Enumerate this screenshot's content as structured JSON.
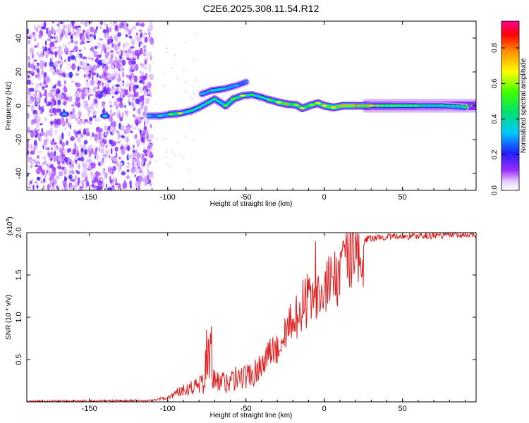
{
  "title": "C2E6.2025.308.11.54.R12",
  "chart_data": [
    {
      "type": "heatmap",
      "name": "spectrogram",
      "xlabel": "Height of straight line (km)",
      "ylabel": "Frequency (Hz)",
      "xlim": [
        -190,
        97
      ],
      "ylim": [
        -50,
        50
      ],
      "xticks": [
        -150,
        -100,
        -50,
        0,
        50
      ],
      "yticks": [
        -40,
        -20,
        0,
        20,
        40
      ],
      "colorbar": {
        "label": "Normalized spectral amplitude",
        "ticks": [
          0.0,
          0.2,
          0.4,
          0.6,
          0.8
        ],
        "range": [
          0,
          0.95
        ]
      },
      "noise_region": {
        "x_range": [
          -190,
          -110
        ],
        "y_range": [
          -50,
          50
        ]
      },
      "ridge": [
        {
          "x": -112,
          "f": -6,
          "a": 0.35
        },
        {
          "x": -105,
          "f": -6,
          "a": 0.4
        },
        {
          "x": -98,
          "f": -5,
          "a": 0.55
        },
        {
          "x": -92,
          "f": -4.5,
          "a": 0.7
        },
        {
          "x": -85,
          "f": -3,
          "a": 0.45
        },
        {
          "x": -80,
          "f": -1,
          "a": 0.45
        },
        {
          "x": -74,
          "f": 2,
          "a": 0.45
        },
        {
          "x": -70,
          "f": 4,
          "a": 0.45
        },
        {
          "x": -63,
          "f": 0,
          "a": 0.55
        },
        {
          "x": -58,
          "f": 4,
          "a": 0.55
        },
        {
          "x": -52,
          "f": 6,
          "a": 0.65
        },
        {
          "x": -46,
          "f": 6.5,
          "a": 0.5
        },
        {
          "x": -40,
          "f": 5,
          "a": 0.45
        },
        {
          "x": -35,
          "f": 3.5,
          "a": 0.55
        },
        {
          "x": -29,
          "f": 2,
          "a": 0.65
        },
        {
          "x": -24,
          "f": 1,
          "a": 0.75
        },
        {
          "x": -18,
          "f": 0.5,
          "a": 0.6
        },
        {
          "x": -14,
          "f": -1.5,
          "a": 0.7
        },
        {
          "x": -8,
          "f": 0.5,
          "a": 0.6
        },
        {
          "x": -4,
          "f": 1.5,
          "a": 0.65
        },
        {
          "x": 0,
          "f": 0,
          "a": 0.7
        },
        {
          "x": 6,
          "f": -1,
          "a": 0.7
        },
        {
          "x": 12,
          "f": 0,
          "a": 0.75
        },
        {
          "x": 20,
          "f": 0,
          "a": 0.8
        },
        {
          "x": 30,
          "f": 0,
          "a": 0.65
        },
        {
          "x": 45,
          "f": 0,
          "a": 0.5
        },
        {
          "x": 60,
          "f": 0,
          "a": 0.45
        },
        {
          "x": 75,
          "f": 0,
          "a": 0.4
        },
        {
          "x": 90,
          "f": -1,
          "a": 0.45
        }
      ],
      "upper_branch": [
        {
          "x": -78,
          "f": 7,
          "a": 0.35
        },
        {
          "x": -72,
          "f": 9,
          "a": 0.4
        },
        {
          "x": -64,
          "f": 10,
          "a": 0.4
        },
        {
          "x": -56,
          "f": 12,
          "a": 0.35
        },
        {
          "x": -50,
          "f": 14,
          "a": 0.3
        }
      ],
      "isolated_blobs": [
        {
          "x": -166,
          "f": -5,
          "a": 0.3
        },
        {
          "x": -140,
          "f": -6,
          "a": 0.35
        }
      ]
    },
    {
      "type": "line",
      "name": "snr",
      "xlabel": "Height of straight line (km)",
      "ylabel": "SNR (10 * v/v)",
      "scale_label": "(x10",
      "scale_exp": "4",
      "scale_close": ")",
      "xlim": [
        -190,
        97
      ],
      "ylim": [
        0,
        20000
      ],
      "xticks": [
        -150,
        -100,
        -50,
        0,
        50
      ],
      "yticks": [
        5000,
        10000,
        15000,
        20000
      ],
      "ytick_labels": [
        "0.5",
        "1.0",
        "1.5",
        "2.0"
      ],
      "color": "#e02020",
      "trend": [
        [
          -190,
          60
        ],
        [
          -110,
          150
        ],
        [
          -100,
          500
        ],
        [
          -90,
          1500
        ],
        [
          -80,
          2000
        ],
        [
          -72,
          2600
        ],
        [
          -65,
          2300
        ],
        [
          -55,
          2800
        ],
        [
          -45,
          3300
        ],
        [
          -38,
          5000
        ],
        [
          -30,
          7000
        ],
        [
          -22,
          9000
        ],
        [
          -15,
          11000
        ],
        [
          -8,
          12500
        ],
        [
          -2,
          14000
        ],
        [
          5,
          15000
        ],
        [
          12,
          16000
        ],
        [
          20,
          18000
        ],
        [
          28,
          19300
        ],
        [
          40,
          19500
        ],
        [
          60,
          19600
        ],
        [
          80,
          19700
        ],
        [
          97,
          19700
        ]
      ]
    }
  ]
}
